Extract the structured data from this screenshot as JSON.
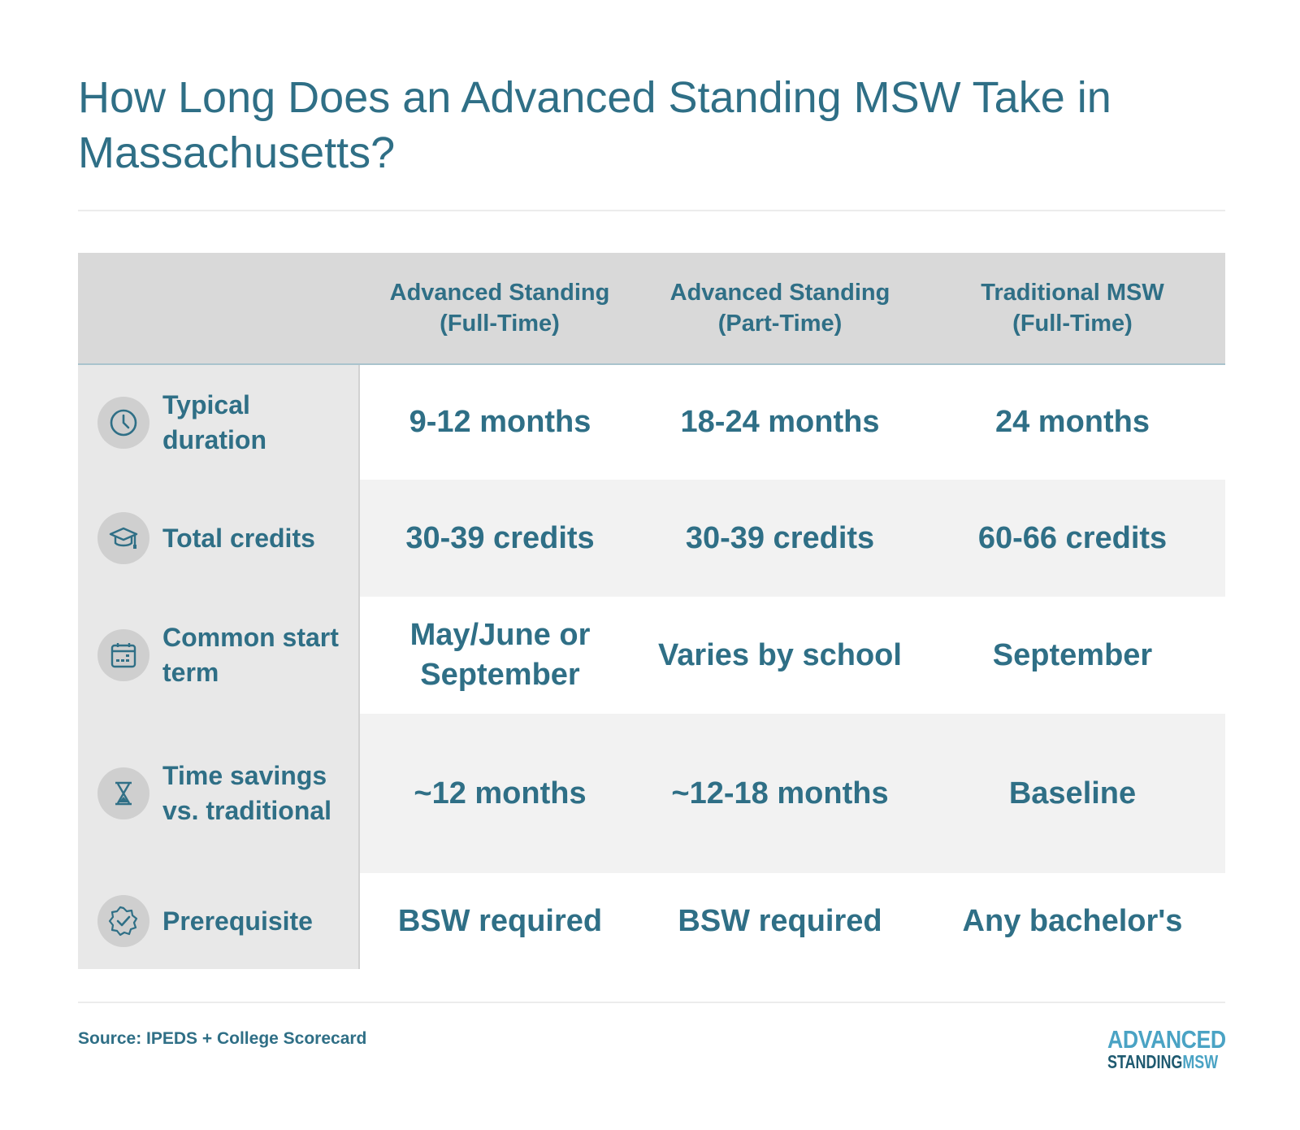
{
  "title": "How Long Does an Advanced Standing MSW Take in Massachusetts?",
  "table": {
    "columns": [
      {
        "line1": "Advanced Standing",
        "line2": "(Full-Time)"
      },
      {
        "line1": "Advanced Standing",
        "line2": "(Part-Time)"
      },
      {
        "line1": "Traditional MSW",
        "line2": "(Full-Time)"
      }
    ],
    "rows": [
      {
        "icon": "clock-icon",
        "label": "Typical duration",
        "values": [
          "9-12 months",
          "18-24 months",
          "24 months"
        ]
      },
      {
        "icon": "graduation-cap-icon",
        "label": "Total credits",
        "values": [
          "30-39 credits",
          "30-39 credits",
          "60-66 credits"
        ]
      },
      {
        "icon": "calendar-icon",
        "label": "Common start term",
        "values": [
          "May/June or September",
          "Varies by school",
          "September"
        ]
      },
      {
        "icon": "hourglass-icon",
        "label": "Time savings vs. traditional",
        "values": [
          "~12 months",
          "~12-18 months",
          "Baseline"
        ]
      },
      {
        "icon": "check-badge-icon",
        "label": "Prerequisite",
        "values": [
          "BSW required",
          "BSW required",
          "Any bachelor's"
        ]
      }
    ]
  },
  "source": "Source: IPEDS + College Scorecard",
  "logo": {
    "line1": "ADVANCED",
    "line2a": "STANDING",
    "line2b": "MSW"
  },
  "colors": {
    "text": "#2f6f86",
    "header_bg": "#d9d9d9",
    "row_head_bg": "#e8e8e8",
    "stripe_bg": "#f2f2f2",
    "logo_accent": "#4aa3c4"
  }
}
